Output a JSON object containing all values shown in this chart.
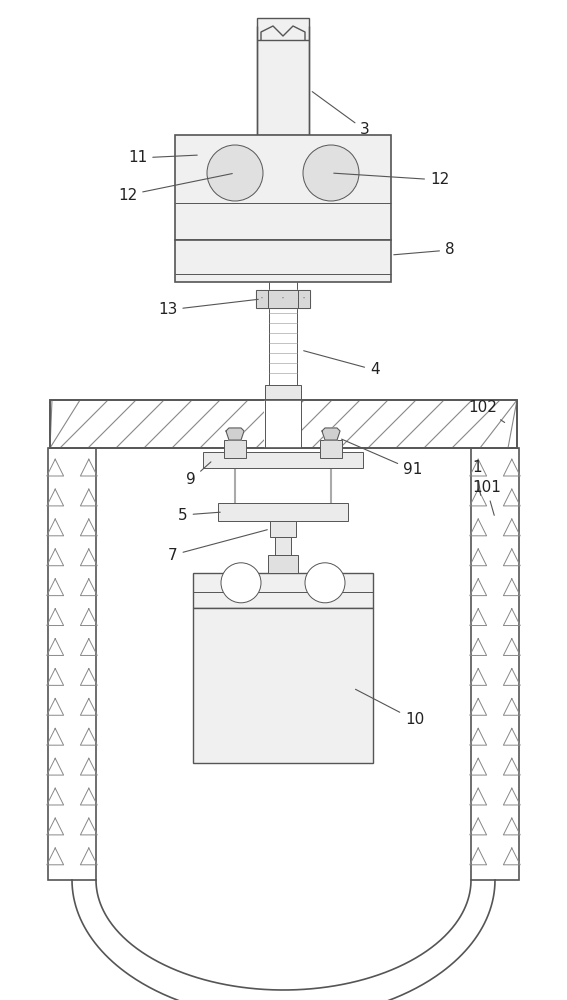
{
  "bg_color": "#ffffff",
  "line_color": "#555555",
  "label_color": "#222222",
  "fig_width": 5.67,
  "fig_height": 10.0,
  "dpi": 100
}
